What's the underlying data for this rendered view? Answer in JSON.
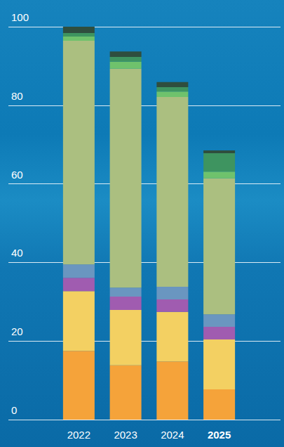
{
  "chart_data": {
    "type": "bar",
    "stacked": true,
    "grid": true,
    "categories": [
      "2022",
      "2023",
      "2024",
      "2025"
    ],
    "ylim": [
      0,
      100
    ],
    "yticks": [
      0,
      20,
      40,
      60,
      80,
      100
    ],
    "series": [
      {
        "color": "#f5a33a",
        "values": [
          17.5,
          13.8,
          14.8,
          7.7
        ]
      },
      {
        "color": "#f3d062",
        "values": [
          15.2,
          14.1,
          12.6,
          12.7
        ]
      },
      {
        "color": "#a05cb0",
        "values": [
          3.4,
          3.4,
          3.2,
          3.2
        ]
      },
      {
        "color": "#6a96c0",
        "values": [
          3.4,
          2.3,
          3.2,
          3.2
        ]
      },
      {
        "color": "#abbf80",
        "values": [
          56.9,
          55.7,
          48.3,
          34.6
        ]
      },
      {
        "color": "#6fc26c",
        "values": [
          1.1,
          1.8,
          1.4,
          1.7
        ]
      },
      {
        "color": "#3e9460",
        "values": [
          0.9,
          1.2,
          1.1,
          4.7
        ]
      },
      {
        "color": "#2f4e3e",
        "values": [
          1.6,
          1.4,
          1.3,
          0.7
        ]
      }
    ]
  }
}
